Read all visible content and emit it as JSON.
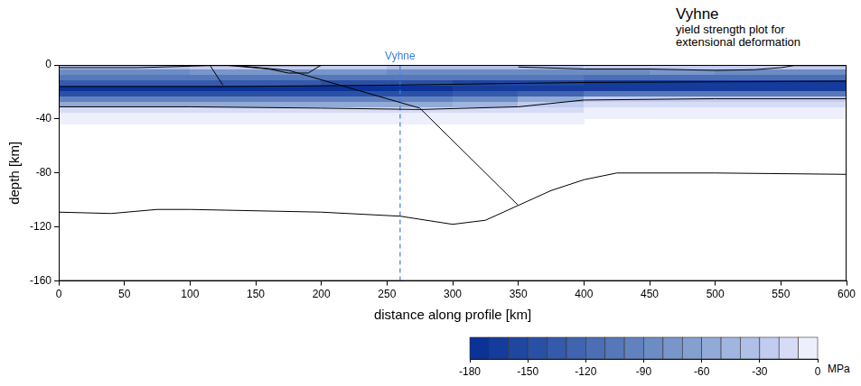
{
  "chart_data": {
    "type": "heatmap",
    "title": "Vyhne",
    "subtitle": "yield strength plot for extensional deformation",
    "x_label": "distance along profile [km]",
    "y_label": "depth [km]",
    "xlim": [
      0,
      600
    ],
    "xticks": [
      0,
      50,
      100,
      150,
      200,
      250,
      300,
      350,
      400,
      450,
      500,
      550,
      600
    ],
    "ylim": [
      -160,
      0
    ],
    "yticks": [
      -160,
      -120,
      -80,
      -40,
      0
    ],
    "grid": false,
    "cells": {
      "x_edges": [
        0,
        50,
        100,
        150,
        200,
        250,
        300,
        350,
        400,
        450,
        500,
        550,
        600
      ],
      "depth_edges": [
        0,
        -4,
        -8,
        -12,
        -16,
        -20,
        -24,
        -28,
        -32,
        -36,
        -40,
        -44
      ],
      "values": [
        [
          -40,
          -40,
          -30,
          -30,
          -30,
          -40,
          -40,
          -40,
          -30,
          -30,
          -30,
          -30
        ],
        [
          -90,
          -90,
          -80,
          -80,
          -80,
          -90,
          -90,
          -90,
          -90,
          -80,
          -90,
          -90
        ],
        [
          -110,
          -110,
          -110,
          -110,
          -110,
          -110,
          -110,
          -110,
          -120,
          -120,
          -120,
          -120
        ],
        [
          -140,
          -140,
          -140,
          -140,
          -150,
          -150,
          -160,
          -160,
          -165,
          -165,
          -165,
          -165
        ],
        [
          -175,
          -175,
          -175,
          -175,
          -175,
          -175,
          -170,
          -170,
          -165,
          -165,
          -165,
          -165
        ],
        [
          -150,
          -150,
          -150,
          -150,
          -150,
          -150,
          -140,
          -130,
          -110,
          -110,
          -110,
          -110
        ],
        [
          -100,
          -100,
          -100,
          -100,
          -100,
          -100,
          -90,
          -60,
          -30,
          -30,
          -30,
          -30
        ],
        [
          -60,
          -60,
          -60,
          -60,
          -60,
          -60,
          -50,
          -30,
          -15,
          -15,
          -15,
          -15
        ],
        [
          -20,
          -20,
          -20,
          -20,
          -20,
          -20,
          -20,
          -15,
          -10,
          -10,
          -10,
          -10
        ],
        [
          -10,
          -10,
          -10,
          -10,
          -10,
          -10,
          -10,
          -5,
          -5,
          -5,
          -5,
          -5
        ],
        [
          -5,
          -5,
          -5,
          -5,
          -5,
          -5,
          -5,
          -5,
          0,
          0,
          0,
          0
        ]
      ]
    },
    "colorbar": {
      "range": [
        -180,
        0
      ],
      "ticks": [
        -180,
        -150,
        -120,
        -90,
        -60,
        -30,
        0
      ],
      "unit": "MPa",
      "colors": [
        "#0a3297",
        "#153c9c",
        "#1f46a1",
        "#2a50a6",
        "#355aab",
        "#4064b0",
        "#4b6eb5",
        "#5678ba",
        "#6182bf",
        "#6c8cc4",
        "#7896ca",
        "#84a0d0",
        "#92aad6",
        "#a0b5e0",
        "#b0bfe8",
        "#c2ccf0",
        "#d6dcf6",
        "#eeeffc"
      ]
    },
    "lines": [
      {
        "color": "#555555",
        "points": [
          [
            0,
            0
          ],
          [
            600,
            0
          ]
        ]
      },
      {
        "color": "#000000",
        "points": [
          [
            0,
            -2
          ],
          [
            60,
            -2
          ],
          [
            115,
            -0.5
          ],
          [
            200,
            -0.5
          ]
        ]
      },
      {
        "color": "#000000",
        "points": [
          [
            350,
            -1.5
          ],
          [
            400,
            -3
          ],
          [
            450,
            -3
          ],
          [
            500,
            -4
          ],
          [
            530,
            -3.5
          ],
          [
            550,
            -2
          ],
          [
            560,
            -0.5
          ],
          [
            600,
            -0.5
          ]
        ]
      },
      {
        "color": "#000000",
        "points": [
          [
            115,
            0
          ],
          [
            125,
            -15
          ]
        ]
      },
      {
        "color": "#000000",
        "points": [
          [
            125,
            0
          ],
          [
            160,
            -3
          ],
          [
            175,
            -6
          ],
          [
            190,
            -6
          ],
          [
            200,
            0
          ]
        ]
      },
      {
        "color": "#000000",
        "points": [
          [
            130,
            0
          ],
          [
            175,
            -4
          ],
          [
            275,
            -32
          ],
          [
            350,
            -104
          ]
        ]
      },
      {
        "color": "#000000",
        "points": [
          [
            0,
            -16
          ],
          [
            125,
            -16
          ],
          [
            250,
            -15
          ],
          [
            400,
            -13
          ],
          [
            600,
            -12
          ]
        ]
      },
      {
        "color": "#000000",
        "points": [
          [
            0,
            -31
          ],
          [
            100,
            -31
          ],
          [
            200,
            -32
          ],
          [
            275,
            -33
          ],
          [
            350,
            -31
          ],
          [
            400,
            -26
          ],
          [
            500,
            -25
          ],
          [
            600,
            -25
          ]
        ]
      },
      {
        "color": "#000000",
        "points": [
          [
            0,
            -109
          ],
          [
            40,
            -110
          ],
          [
            75,
            -107
          ],
          [
            100,
            -107
          ],
          [
            200,
            -109
          ],
          [
            260,
            -112
          ],
          [
            300,
            -118
          ],
          [
            325,
            -115
          ],
          [
            350,
            -104
          ],
          [
            375,
            -93
          ],
          [
            400,
            -85
          ],
          [
            425,
            -80
          ],
          [
            500,
            -80
          ],
          [
            600,
            -81
          ]
        ]
      }
    ],
    "marker_line": {
      "x": 260,
      "label": "Vyhne",
      "color": "#3b7fe0",
      "line_style": "dashed"
    }
  }
}
